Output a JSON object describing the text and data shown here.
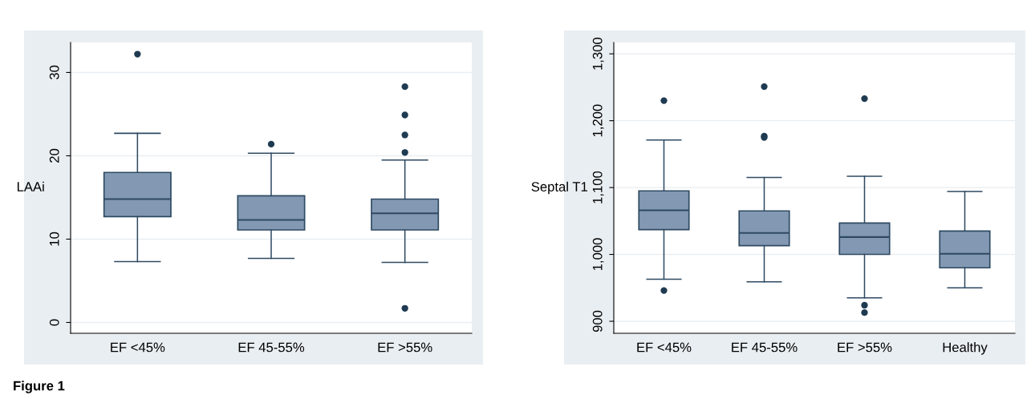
{
  "chart_data": [
    {
      "type": "box",
      "ylabel": "LAAi",
      "categories": [
        "EF <45%",
        "EF 45-55%",
        "EF >55%"
      ],
      "boxes": [
        {
          "low": 7.3,
          "q1": 12.7,
          "median": 14.8,
          "q3": 18.0,
          "high": 22.7,
          "outliers": [
            32.2
          ]
        },
        {
          "low": 7.7,
          "q1": 11.1,
          "median": 12.3,
          "q3": 15.2,
          "high": 20.3,
          "outliers": [
            21.4
          ]
        },
        {
          "low": 7.2,
          "q1": 11.1,
          "median": 13.1,
          "q3": 14.8,
          "high": 19.5,
          "outliers": [
            28.3,
            24.9,
            22.5,
            20.4,
            1.7
          ]
        }
      ],
      "color": "#8398b2",
      "ylim": [
        -1.3,
        33.6
      ],
      "yticks": [
        0,
        10,
        20,
        30
      ],
      "grid": "y",
      "annotations": [
        "Figure 1"
      ]
    },
    {
      "type": "box",
      "ylabel": "Septal T1",
      "categories": [
        "EF <45%",
        "EF 45-55%",
        "EF >55%",
        "Healthy"
      ],
      "boxes": [
        {
          "low": 963,
          "q1": 1037,
          "median": 1066,
          "q3": 1095,
          "high": 1171,
          "outliers": [
            1230,
            946
          ]
        },
        {
          "low": 959,
          "q1": 1013,
          "median": 1032,
          "q3": 1065,
          "high": 1115,
          "outliers": [
            1251,
            1177,
            1175
          ]
        },
        {
          "low": 935,
          "q1": 1000,
          "median": 1026,
          "q3": 1047,
          "high": 1117,
          "outliers": [
            1233,
            924,
            913
          ]
        },
        {
          "low": 950,
          "q1": 980,
          "median": 1001,
          "q3": 1035,
          "high": 1094
        }
      ],
      "color": "#8398b2",
      "ylim": [
        882,
        1317
      ],
      "yticks": [
        {
          "value": 900,
          "label": "900"
        },
        {
          "value": 1000,
          "label": "1,000"
        },
        {
          "value": 1100,
          "label": "1,100"
        },
        {
          "value": 1200,
          "label": "1,200"
        },
        {
          "value": 1300,
          "label": "1,300"
        }
      ],
      "grid": "y"
    }
  ]
}
